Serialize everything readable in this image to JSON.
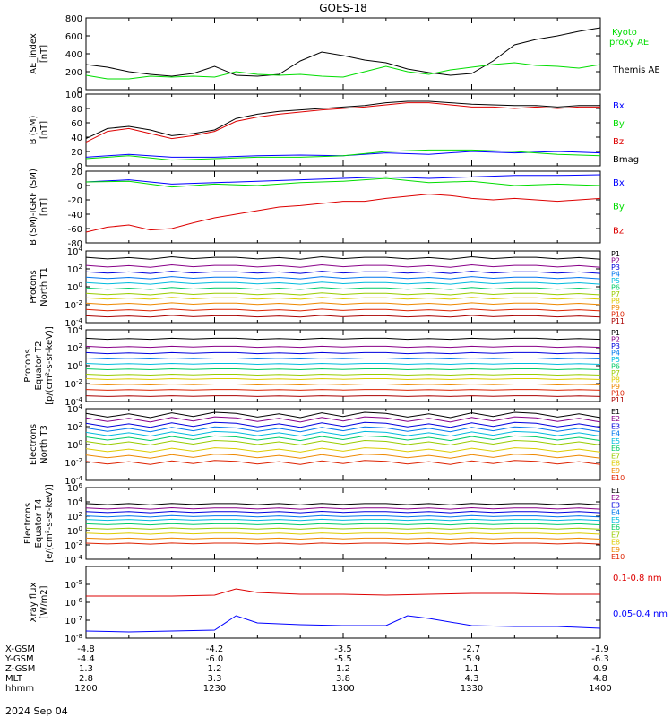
{
  "title": "GOES-18",
  "time_axis": {
    "start": "1200",
    "end": "1400",
    "rows": [
      {
        "label": "X-GSM",
        "values": [
          "-4.8",
          "-4.2",
          "-3.5",
          "-2.7",
          "-1.9"
        ]
      },
      {
        "label": "Y-GSM",
        "values": [
          "-4.4",
          "-6.0",
          "-5.5",
          "-5.9",
          "-6.3"
        ]
      },
      {
        "label": "Z-GSM",
        "values": [
          "1.3",
          "1.2",
          "1.2",
          "1.1",
          "0.9"
        ]
      },
      {
        "label": "MLT",
        "values": [
          "2.8",
          "3.3",
          "3.8",
          "4.3",
          "4.8"
        ]
      },
      {
        "label": "hhmm",
        "values": [
          "1200",
          "1230",
          "1300",
          "1330",
          "1400"
        ]
      }
    ],
    "date": "2024 Sep 04"
  },
  "chart_data": [
    {
      "type": "line",
      "ylabel": [
        "AE_index",
        "[nT]"
      ],
      "ylim": [
        0,
        800
      ],
      "yticks": [
        0,
        200,
        400,
        600,
        800
      ],
      "tick_labels": [
        "0",
        "200",
        "400",
        "600",
        "800"
      ],
      "series": [
        {
          "name": "Themis AE",
          "color": "#000000",
          "x": [
            0,
            5,
            10,
            15,
            20,
            25,
            30,
            35,
            40,
            45,
            50,
            55,
            60,
            65,
            70,
            75,
            80,
            85,
            90,
            95,
            100,
            105,
            110,
            115,
            120
          ],
          "values": [
            280,
            250,
            200,
            170,
            150,
            180,
            260,
            160,
            150,
            170,
            320,
            420,
            380,
            330,
            300,
            230,
            190,
            160,
            180,
            320,
            500,
            560,
            600,
            650,
            690
          ]
        },
        {
          "name": "Kyoto proxy AE",
          "color": "#00dd00",
          "x": [
            0,
            5,
            10,
            15,
            20,
            25,
            30,
            35,
            40,
            45,
            50,
            55,
            60,
            65,
            70,
            75,
            80,
            85,
            90,
            95,
            100,
            105,
            110,
            115,
            120
          ],
          "values": [
            160,
            120,
            120,
            150,
            140,
            150,
            140,
            200,
            170,
            160,
            170,
            150,
            140,
            200,
            260,
            200,
            170,
            220,
            250,
            280,
            300,
            270,
            260,
            240,
            280
          ]
        }
      ]
    },
    {
      "type": "line",
      "ylabel": [
        "B (SM)",
        "[nT]"
      ],
      "ylim": [
        0,
        100
      ],
      "yticks": [
        0,
        20,
        40,
        60,
        80,
        100
      ],
      "tick_labels": [
        "0",
        "20",
        "40",
        "60",
        "80",
        "100"
      ],
      "series": [
        {
          "name": "Bx",
          "color": "#0000ff",
          "x": [
            0,
            10,
            20,
            30,
            40,
            50,
            60,
            70,
            80,
            90,
            100,
            110,
            120
          ],
          "values": [
            12,
            16,
            12,
            12,
            14,
            15,
            14,
            18,
            16,
            20,
            18,
            20,
            18
          ]
        },
        {
          "name": "By",
          "color": "#00dd00",
          "x": [
            0,
            10,
            20,
            30,
            40,
            50,
            60,
            70,
            80,
            90,
            100,
            110,
            120
          ],
          "values": [
            10,
            14,
            8,
            10,
            12,
            12,
            14,
            20,
            22,
            22,
            20,
            16,
            14
          ]
        },
        {
          "name": "Bz",
          "color": "#dd0000",
          "x": [
            0,
            5,
            10,
            15,
            20,
            25,
            30,
            35,
            40,
            45,
            50,
            55,
            60,
            65,
            70,
            75,
            80,
            85,
            90,
            95,
            100,
            105,
            110,
            115,
            120
          ],
          "values": [
            33,
            48,
            52,
            45,
            38,
            42,
            48,
            62,
            68,
            72,
            75,
            78,
            80,
            82,
            85,
            88,
            88,
            85,
            82,
            82,
            80,
            82,
            80,
            82,
            82
          ]
        },
        {
          "name": "Bmag",
          "color": "#000000",
          "x": [
            0,
            5,
            10,
            15,
            20,
            25,
            30,
            35,
            40,
            45,
            50,
            55,
            60,
            65,
            70,
            75,
            80,
            85,
            90,
            95,
            100,
            105,
            110,
            115,
            120
          ],
          "values": [
            38,
            52,
            55,
            50,
            42,
            45,
            50,
            66,
            72,
            76,
            78,
            80,
            82,
            84,
            88,
            90,
            90,
            88,
            86,
            85,
            84,
            84,
            82,
            84,
            84
          ]
        }
      ]
    },
    {
      "type": "line",
      "ylabel": [
        "B (SM)-IGRF (SM)",
        "[nT]"
      ],
      "ylim": [
        -80,
        20
      ],
      "yticks": [
        -80,
        -60,
        -40,
        -20,
        0,
        20
      ],
      "tick_labels": [
        "-80",
        "-60",
        "-40",
        "-20",
        "0",
        "20"
      ],
      "series": [
        {
          "name": "Bx",
          "color": "#0000ff",
          "x": [
            0,
            10,
            20,
            30,
            40,
            50,
            60,
            70,
            80,
            90,
            100,
            110,
            120
          ],
          "values": [
            5,
            8,
            2,
            4,
            6,
            8,
            10,
            12,
            10,
            12,
            14,
            14,
            15
          ]
        },
        {
          "name": "By",
          "color": "#00dd00",
          "x": [
            0,
            10,
            20,
            30,
            40,
            50,
            60,
            70,
            80,
            90,
            100,
            110,
            120
          ],
          "values": [
            5,
            6,
            -2,
            2,
            0,
            4,
            6,
            10,
            4,
            6,
            0,
            2,
            0
          ]
        },
        {
          "name": "Bz",
          "color": "#dd0000",
          "x": [
            0,
            5,
            10,
            15,
            20,
            25,
            30,
            35,
            40,
            45,
            50,
            55,
            60,
            65,
            70,
            75,
            80,
            85,
            90,
            95,
            100,
            105,
            110,
            115,
            120
          ],
          "values": [
            -65,
            -58,
            -55,
            -62,
            -60,
            -52,
            -45,
            -40,
            -35,
            -30,
            -28,
            -25,
            -22,
            -22,
            -18,
            -15,
            -12,
            -14,
            -18,
            -20,
            -18,
            -20,
            -22,
            -20,
            -18
          ]
        }
      ]
    },
    {
      "type": "line",
      "scale": "log",
      "ylabel": [
        "Protons",
        "North T1"
      ],
      "ylim_exp": [
        -4,
        4
      ],
      "label_exps": [
        -4,
        -2,
        0,
        2,
        4
      ],
      "series_labels": [
        "P1",
        "P2",
        "P3",
        "P4",
        "P5",
        "P6",
        "P7",
        "P8",
        "P9",
        "P10",
        "P11"
      ],
      "levels_exp": [
        3.2,
        2.3,
        1.6,
        1.0,
        0.4,
        -0.2,
        -0.8,
        -1.3,
        -1.9,
        -2.6,
        -3.3
      ],
      "ripple": [
        0.15,
        -0.15,
        0.1,
        -0.2,
        0.25,
        -0.1,
        0.15
      ]
    },
    {
      "type": "line",
      "scale": "log",
      "ylabel": [
        "Protons",
        "Equator T2",
        "[p/(cm²-s-sr-keV)]"
      ],
      "ylim_exp": [
        -4,
        4
      ],
      "label_exps": [
        -4,
        -2,
        0,
        2,
        4
      ],
      "series_labels": [
        "P1",
        "P2",
        "P3",
        "P4",
        "P5",
        "P6",
        "P7",
        "P8",
        "P9",
        "P10",
        "P11"
      ],
      "levels_exp": [
        3.0,
        2.1,
        1.4,
        0.8,
        0.2,
        -0.4,
        -1.0,
        -1.5,
        -2.1,
        -2.7,
        -3.4
      ],
      "ripple": [
        0.1,
        -0.1,
        0.05,
        -0.1,
        0.1,
        -0.05,
        0.1
      ]
    },
    {
      "type": "line",
      "scale": "log",
      "ylabel": [
        "Electrons",
        "North T3"
      ],
      "ylim_exp": [
        -4,
        4
      ],
      "label_exps": [
        -4,
        -2,
        0,
        2,
        4
      ],
      "series_labels": [
        "E1",
        "E2",
        "E3",
        "E4",
        "E5",
        "E6",
        "E7",
        "E8",
        "E9",
        "E10"
      ],
      "levels_exp": [
        3.3,
        2.8,
        2.2,
        1.7,
        1.2,
        0.7,
        0.2,
        -0.6,
        -1.3,
        -2.0
      ],
      "ripple": [
        0.3,
        -0.4,
        0.2,
        -0.5,
        0.4,
        -0.3,
        0.5
      ]
    },
    {
      "type": "line",
      "scale": "log",
      "ylabel": [
        "Electrons",
        "Equator T4",
        "[e/(cm²-s-sr-keV)]"
      ],
      "ylim_exp": [
        -4,
        6
      ],
      "label_exps": [
        -4,
        -2,
        0,
        2,
        4,
        6
      ],
      "series_labels": [
        "E1",
        "E2",
        "E3",
        "E4",
        "E5",
        "E6",
        "E7",
        "E8",
        "E9",
        "E10"
      ],
      "levels_exp": [
        3.7,
        3.1,
        2.6,
        2.0,
        1.5,
        0.9,
        0.3,
        -0.4,
        -1.1,
        -1.8
      ],
      "ripple": [
        0.1,
        -0.15,
        0.1,
        -0.2,
        0.15,
        -0.1,
        0.1
      ]
    },
    {
      "type": "line",
      "scale": "log",
      "ylabel": [
        "Xray flux",
        "[W/m2]"
      ],
      "ylim_exp": [
        -8,
        -4
      ],
      "label_exps": [
        -8,
        -7,
        -6,
        -5
      ],
      "series": [
        {
          "name": "0.1-0.8 nm",
          "color": "#dd0000",
          "x": [
            0,
            10,
            20,
            30,
            35,
            40,
            50,
            60,
            70,
            80,
            90,
            100,
            110,
            120
          ],
          "values": [
            -5.65,
            -5.65,
            -5.65,
            -5.6,
            -5.25,
            -5.45,
            -5.55,
            -5.55,
            -5.6,
            -5.55,
            -5.5,
            -5.5,
            -5.55,
            -5.55
          ]
        },
        {
          "name": "0.05-0.4 nm",
          "color": "#0000ff",
          "x": [
            0,
            10,
            20,
            30,
            35,
            40,
            50,
            60,
            70,
            75,
            80,
            90,
            100,
            110,
            120
          ],
          "values": [
            -7.6,
            -7.65,
            -7.6,
            -7.55,
            -6.75,
            -7.15,
            -7.25,
            -7.3,
            -7.3,
            -6.75,
            -6.9,
            -7.3,
            -7.35,
            -7.35,
            -7.45
          ]
        }
      ]
    }
  ]
}
